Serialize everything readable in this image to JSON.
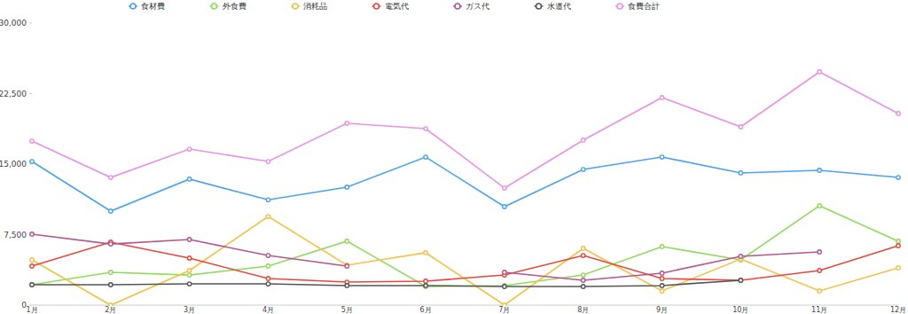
{
  "chart_data": {
    "type": "line",
    "categories": [
      "1月",
      "2月",
      "3月",
      "4月",
      "5月",
      "6月",
      "7月",
      "8月",
      "9月",
      "10月",
      "11月",
      "12月"
    ],
    "series": [
      {
        "name": "食材費",
        "color": "#4aa3f0",
        "values": [
          15280,
          10000,
          13400,
          11200,
          12550,
          15750,
          10470,
          14430,
          15750,
          14060,
          14340,
          13580
        ]
      },
      {
        "name": "外食費",
        "color": "#8fdc5a",
        "values": [
          2170,
          3490,
          3200,
          4150,
          6800,
          1980,
          2080,
          3200,
          6230,
          4810,
          10570,
          6800
        ]
      },
      {
        "name": "消耗品",
        "color": "#f3c245",
        "values": [
          4810,
          0,
          3680,
          9430,
          4250,
          5570,
          0,
          6040,
          1510,
          4900,
          1510,
          3960
        ]
      },
      {
        "name": "電気代",
        "color": "#e8473c",
        "values": [
          4150,
          6700,
          5000,
          2830,
          2450,
          2550,
          3200,
          5280,
          2830,
          2640,
          3680,
          6320
        ]
      },
      {
        "name": "ガス代",
        "color": "#b5568f",
        "values": [
          7550,
          6500,
          6980,
          5280,
          4150,
          null,
          3490,
          2640,
          3400,
          5190,
          5660,
          null
        ]
      },
      {
        "name": "水道代",
        "color": "#555555",
        "values": [
          2170,
          2170,
          2260,
          2260,
          2080,
          2080,
          1980,
          1980,
          2080,
          2640,
          null,
          null
        ]
      },
      {
        "name": "食費合計",
        "color": "#e992e6",
        "values": [
          17450,
          13580,
          16600,
          15280,
          19340,
          18770,
          12450,
          17550,
          22080,
          18960,
          24810,
          20380
        ]
      }
    ],
    "ylim": [
      0,
      30000
    ],
    "yticks": [
      0,
      {
        "value": 7500,
        "label": "7,500"
      },
      {
        "value": 15000,
        "label": "15,000"
      },
      {
        "value": 22500,
        "label": "22,500"
      },
      {
        "value": 30000,
        "label": "30,000"
      }
    ],
    "grid": false,
    "legend": "top",
    "marker": "circle"
  }
}
